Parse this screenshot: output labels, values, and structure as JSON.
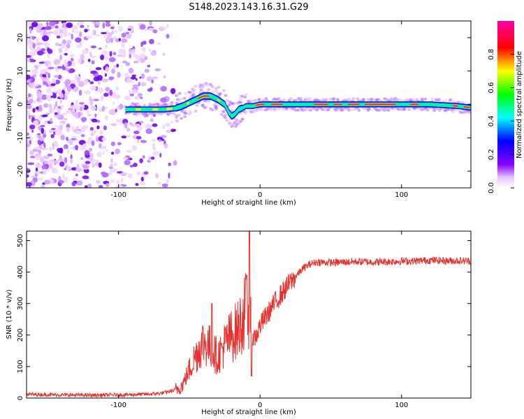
{
  "title": "S148.2023.143.16.31.G29",
  "chart_data": [
    {
      "type": "heatmap",
      "xlabel": "Height of straight line (km)",
      "ylabel": "Frequency (Hz)",
      "xlim": [
        -165,
        149
      ],
      "ylim": [
        -25,
        25
      ],
      "x_ticks": [
        -100,
        0,
        100
      ],
      "y_ticks": [
        -20,
        -10,
        0,
        10,
        20
      ],
      "colorbar": {
        "label": "Normalized spectral amplitude",
        "range": [
          0,
          1
        ],
        "ticks": [
          "0.0",
          "0.2",
          "0.4",
          "0.6",
          "0.8"
        ],
        "colormap": [
          "#ffffff",
          "#8a00ff",
          "#0000ff",
          "#00ffff",
          "#00ff00",
          "#ffff00",
          "#ff0000",
          "#ff00aa"
        ]
      },
      "ridge": {
        "x": [
          -95,
          -80,
          -68,
          -60,
          -55,
          -50,
          -45,
          -40,
          -35,
          -30,
          -25,
          -22,
          -20,
          -18,
          -15,
          -12,
          -10,
          -5,
          0,
          20,
          40,
          60,
          80,
          100,
          120,
          140,
          149
        ],
        "freq_hz": [
          -1.5,
          -1.5,
          -1.5,
          -1.2,
          -0.5,
          0.5,
          1.5,
          2.5,
          2.5,
          1.5,
          0,
          -2.5,
          -3.5,
          -3,
          -1.5,
          -1,
          -0.5,
          -0.5,
          0,
          0,
          0,
          0,
          0,
          0,
          0,
          -0.5,
          -1
        ]
      }
    },
    {
      "type": "line",
      "xlabel": "Height of straight line (km)",
      "ylabel": "SNR (10 * v/v)",
      "xlim": [
        -165,
        149
      ],
      "ylim": [
        0,
        530
      ],
      "x_ticks": [
        -100,
        0,
        100
      ],
      "y_ticks": [
        0,
        100,
        200,
        300,
        400,
        500
      ],
      "series": [
        {
          "color": "#e8302c",
          "x": [
            -165,
            -140,
            -120,
            -100,
            -80,
            -70,
            -65,
            -60,
            -55,
            -50,
            -45,
            -40,
            -35,
            -30,
            -25,
            -20,
            -15,
            -12,
            -10,
            -8,
            -6,
            -4,
            -2,
            0,
            5,
            10,
            15,
            20,
            25,
            30,
            35,
            40,
            50,
            60,
            70,
            80,
            90,
            100,
            110,
            120,
            130,
            140,
            149
          ],
          "y": [
            12,
            10,
            9,
            10,
            12,
            15,
            20,
            25,
            40,
            90,
            140,
            180,
            160,
            130,
            170,
            200,
            220,
            260,
            280,
            240,
            215,
            190,
            205,
            230,
            265,
            300,
            330,
            360,
            385,
            410,
            425,
            432,
            430,
            432,
            433,
            432,
            433,
            435,
            435,
            438,
            436,
            436,
            435
          ]
        }
      ]
    }
  ]
}
